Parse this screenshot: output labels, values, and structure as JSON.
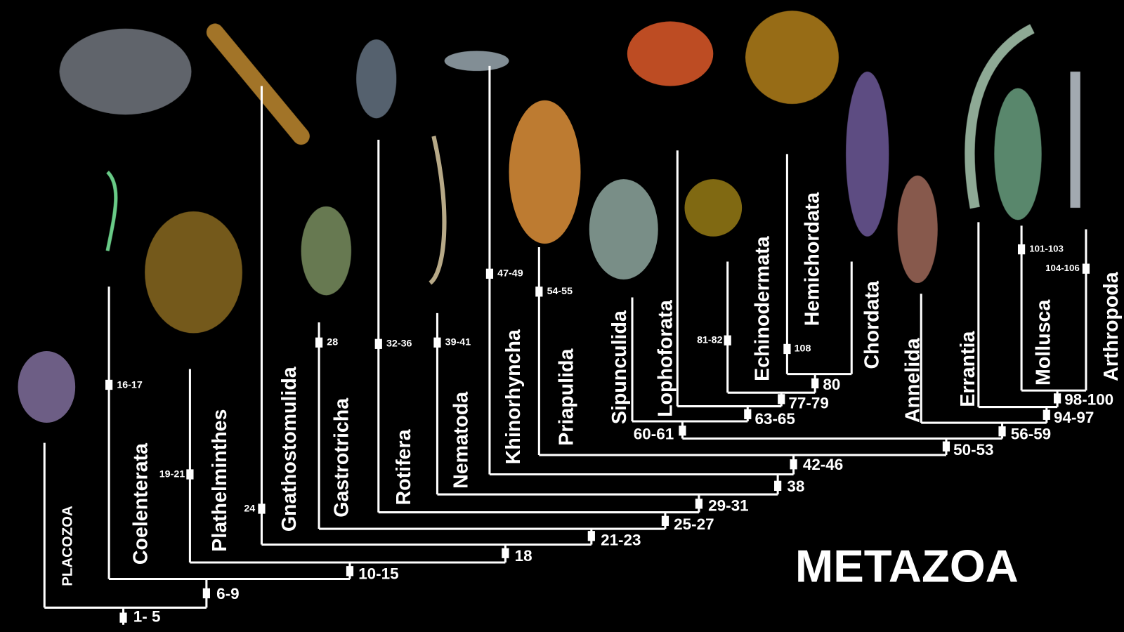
{
  "title": "METAZOA",
  "taxa": [
    "PLACOZOA",
    "Coelenterata",
    "Plathelminthes",
    "Gnathostomulida",
    "Gastrotricha",
    "Rotifera",
    "Nematoda",
    "Khinorhyncha",
    "Priapulida",
    "Sipunculida",
    "Lophoforata",
    "Echinodermata",
    "Hemichordata",
    "Chordata",
    "Annelida",
    "Errantia",
    "Mollusca",
    "Arthropoda"
  ],
  "nodes": [
    "1- 5",
    "6-9",
    "10-15",
    "18",
    "21-23",
    "25-27",
    "29-31",
    "38",
    "42-46",
    "50-53",
    "60-61",
    "63-65",
    "77-79",
    "80",
    "56-59",
    "94-97",
    "98-100",
    "16-17",
    "19-21",
    "24",
    "28",
    "32-36",
    "39-41",
    "47-49",
    "54-55",
    "81-82",
    "108",
    "101-103",
    "104-106"
  ]
}
